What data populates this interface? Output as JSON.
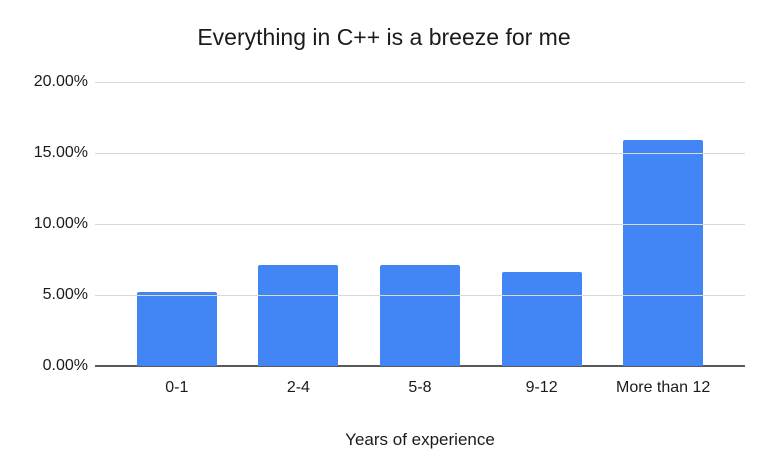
{
  "chart_data": {
    "type": "bar",
    "title": "Everything in C++ is a breeze for me",
    "xlabel": "Years of experience",
    "ylabel": "",
    "categories": [
      "0-1",
      "2-4",
      "5-8",
      "9-12",
      "More than 12"
    ],
    "values": [
      5.2,
      7.1,
      7.1,
      6.6,
      15.9
    ],
    "unit": "%",
    "ylim": [
      0,
      20
    ],
    "yticks": [
      0,
      5,
      10,
      15,
      20
    ],
    "ytick_labels": [
      "0.00%",
      "5.00%",
      "10.00%",
      "15.00%",
      "20.00%"
    ],
    "grid": true,
    "legend": false,
    "colors": {
      "bar": "#4285f4",
      "gridline": "#d9d9d9",
      "axis_line": "#595959",
      "text": "#1b1b1b",
      "background": "#ffffff"
    }
  }
}
